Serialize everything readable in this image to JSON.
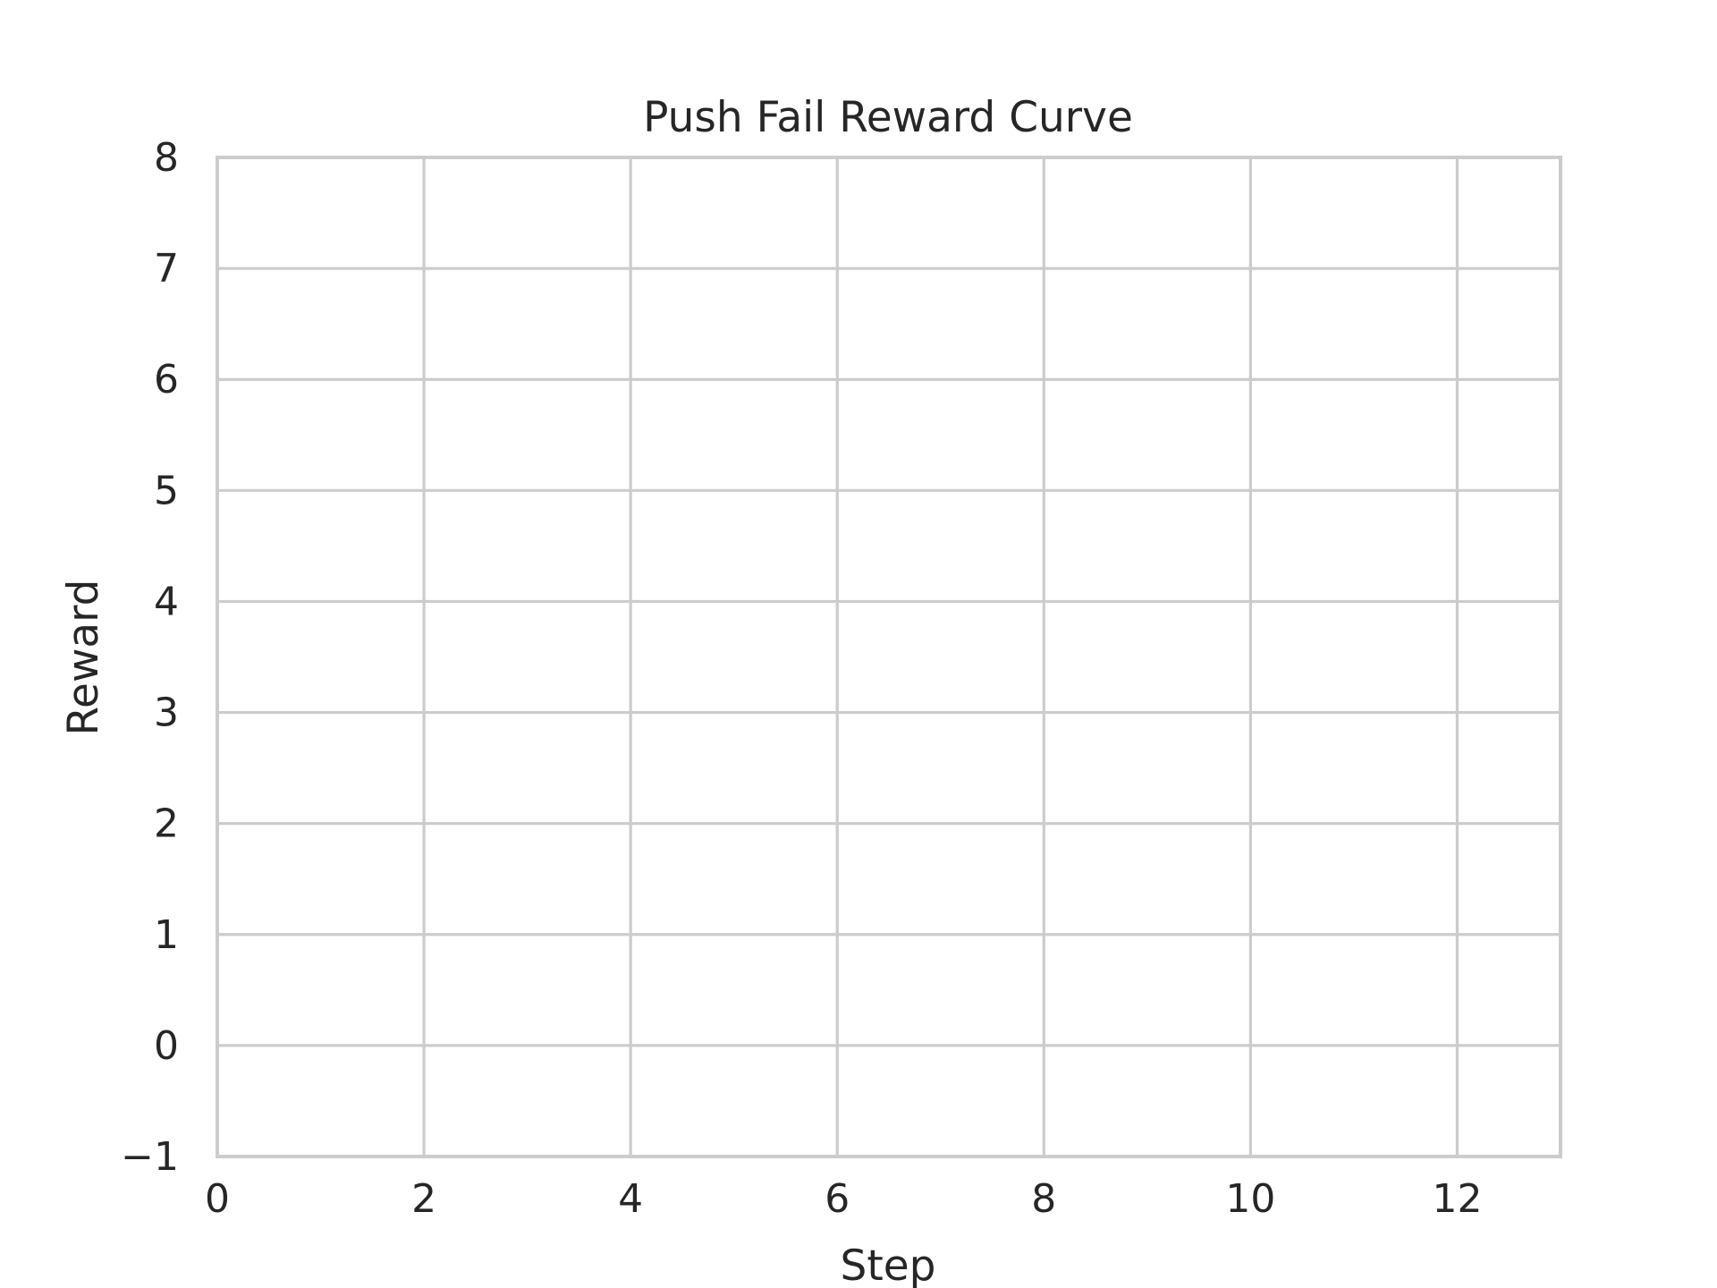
{
  "chart_data": {
    "type": "line",
    "title": "Push Fail Reward Curve",
    "xlabel": "Step",
    "ylabel": "Reward",
    "xlim": [
      0,
      13
    ],
    "ylim": [
      -1,
      8
    ],
    "xticks": [
      0,
      2,
      4,
      6,
      8,
      10,
      12
    ],
    "yticks": [
      -1,
      0,
      1,
      2,
      3,
      4,
      5,
      6,
      7,
      8
    ],
    "xtick_labels": [
      "0",
      "2",
      "4",
      "6",
      "8",
      "10",
      "12"
    ],
    "ytick_labels": [
      "−1",
      "0",
      "1",
      "2",
      "3",
      "4",
      "5",
      "6",
      "7",
      "8"
    ],
    "grid": true,
    "series": [],
    "colors": {
      "grid": "#cccccc",
      "text": "#262626",
      "background": "#ffffff"
    }
  }
}
